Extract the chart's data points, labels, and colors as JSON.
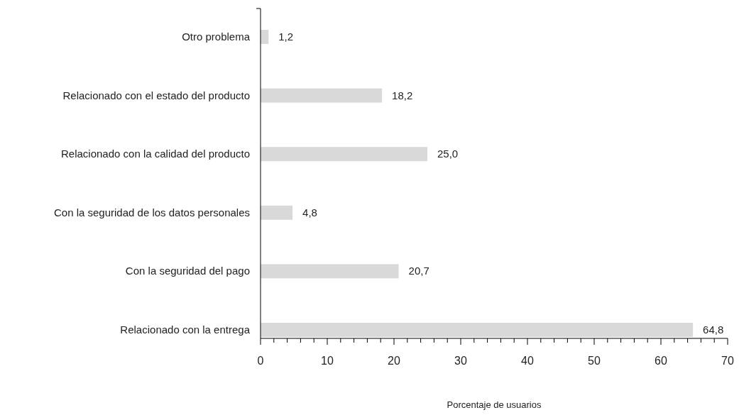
{
  "chart_data": {
    "type": "bar",
    "orientation": "horizontal",
    "xlabel": "Porcentaje de usuarios",
    "categories": [
      "Otro problema",
      "Relacionado con el estado del producto",
      "Relacionado con la calidad del producto",
      "Con la seguridad de los datos personales",
      "Con la seguridad del pago",
      "Relacionado con la entrega"
    ],
    "values": [
      1.2,
      18.2,
      25.0,
      4.8,
      20.7,
      64.8
    ],
    "value_labels": [
      "1,2",
      "18,2",
      "25,0",
      "4,8",
      "20,7",
      "64,8"
    ],
    "color": "#d9d9d9",
    "xlim": [
      0,
      70
    ],
    "xticks": [
      0,
      {
        "value": 2,
        "label": null
      },
      {
        "value": 4,
        "label": null
      },
      {
        "value": 6,
        "label": null
      },
      {
        "value": 8,
        "label": null
      },
      10,
      {
        "value": 12,
        "label": null
      },
      {
        "value": 14,
        "label": null
      },
      {
        "value": 16,
        "label": null
      },
      {
        "value": 18,
        "label": null
      },
      20,
      {
        "value": 22,
        "label": null
      },
      {
        "value": 24,
        "label": null
      },
      {
        "value": 26,
        "label": null
      },
      {
        "value": 28,
        "label": null
      },
      30,
      {
        "value": 32,
        "label": null
      },
      {
        "value": 34,
        "label": null
      },
      {
        "value": 36,
        "label": null
      },
      {
        "value": 38,
        "label": null
      },
      40,
      {
        "value": 42,
        "label": null
      },
      {
        "value": 44,
        "label": null
      },
      {
        "value": 46,
        "label": null
      },
      {
        "value": 48,
        "label": null
      },
      50,
      {
        "value": 52,
        "label": null
      },
      {
        "value": 54,
        "label": null
      },
      {
        "value": 56,
        "label": null
      },
      {
        "value": 58,
        "label": null
      },
      60,
      {
        "value": 62,
        "label": null
      },
      {
        "value": 64,
        "label": null
      },
      {
        "value": 66,
        "label": null
      },
      {
        "value": 68,
        "label": null
      },
      70
    ],
    "grid": false
  }
}
